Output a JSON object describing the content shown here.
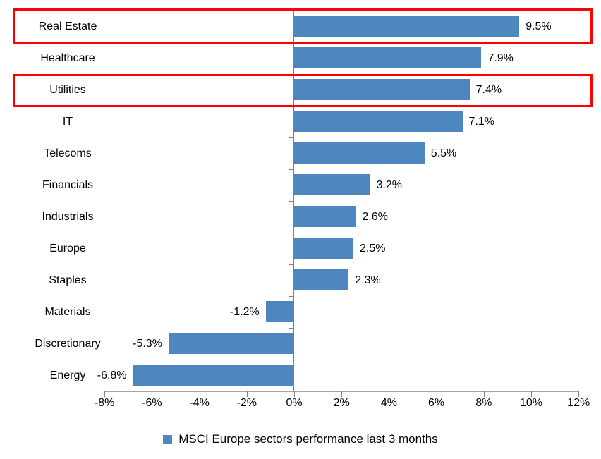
{
  "chart_data": {
    "type": "bar",
    "orientation": "horizontal",
    "categories": [
      "Real Estate",
      "Healthcare",
      "Utilities",
      "IT",
      "Telecoms",
      "Financials",
      "Industrials",
      "Europe",
      "Staples",
      "Materials",
      "Discretionary",
      "Energy"
    ],
    "values": [
      9.5,
      7.9,
      7.4,
      7.1,
      5.5,
      3.2,
      2.6,
      2.5,
      2.3,
      -1.2,
      -5.3,
      -6.8
    ],
    "value_labels": [
      "9.5%",
      "7.9%",
      "7.4%",
      "7.1%",
      "5.5%",
      "3.2%",
      "2.6%",
      "2.5%",
      "2.3%",
      "-1.2%",
      "-5.3%",
      "-6.8%"
    ],
    "xlim": [
      -8,
      12
    ],
    "x_tick_step": 2,
    "x_tick_labels": [
      "-8%",
      "-6%",
      "-4%",
      "-2%",
      "0%",
      "2%",
      "4%",
      "6%",
      "8%",
      "10%",
      "12%"
    ],
    "grid": false,
    "legend": {
      "label": "MSCI Europe sectors performance last 3 months",
      "position": "bottom"
    },
    "highlighted_categories": [
      "Real Estate",
      "Utilities"
    ],
    "colors": {
      "bar": "#4e86be",
      "highlight_box": "#fe0000",
      "axis_line": "#a6a6a6",
      "tick": "#808080",
      "text": "#000000"
    }
  }
}
